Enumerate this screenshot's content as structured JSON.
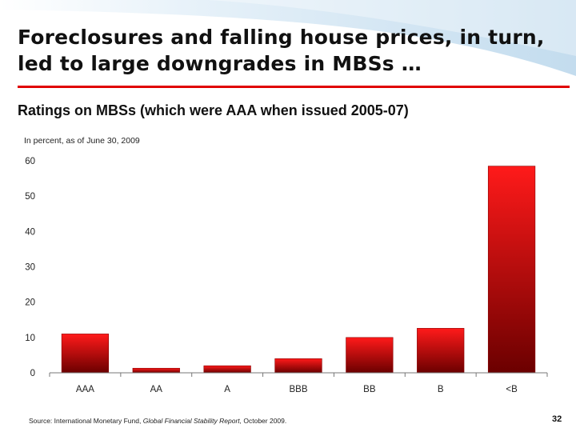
{
  "slide": {
    "title": "Foreclosures and falling house prices, in turn, led to large downgrades in MBSs …",
    "subtitle": "Ratings on MBSs (which were AAA when issued 2005-07)",
    "unit_note": "In percent, as of June 30, 2009",
    "source": {
      "prefix": "Source: International Monetary Fund, ",
      "report": "Global Financial Stability Report,",
      "suffix": " October 2009."
    },
    "page_number": "32"
  },
  "colors": {
    "accent": "#e00000",
    "bar_top": "#ff1a1a",
    "bar_bottom": "#6b0000",
    "wave": "#cfe4f2"
  },
  "chart_data": {
    "type": "bar",
    "title": "Ratings on MBSs (which were AAA when issued 2005-07)",
    "ylabel": "In percent, as of June 30, 2009",
    "xlabel": "",
    "categories": [
      "AAA",
      "AA",
      "A",
      "BBB",
      "BB",
      "B",
      "<B"
    ],
    "values": [
      11,
      1.3,
      2,
      4,
      10,
      12.6,
      58.5
    ],
    "ylim": [
      0,
      60
    ],
    "yticks": [
      0,
      10,
      20,
      30,
      40,
      50,
      60
    ],
    "grid": false,
    "legend": "none"
  }
}
